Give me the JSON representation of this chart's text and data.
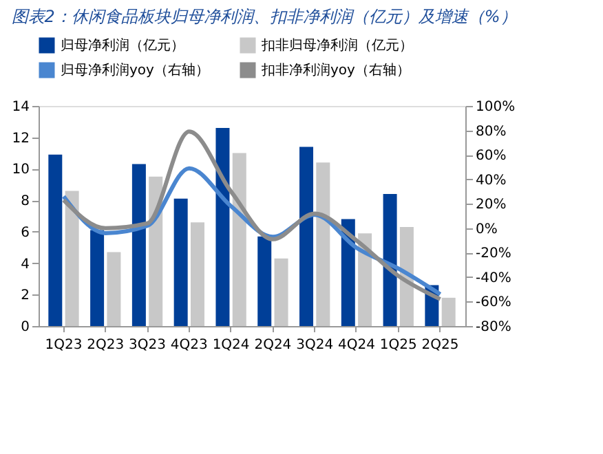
{
  "chart_data": {
    "type": "bar",
    "title": "图表2：休闲食品板块归母净利润、扣非净利润（亿元）及增速（%）",
    "categories": [
      "1Q23",
      "2Q23",
      "3Q23",
      "4Q23",
      "1Q24",
      "2Q24",
      "3Q24",
      "4Q24",
      "1Q25",
      "2Q25"
    ],
    "series": [
      {
        "name": "归母净利润（亿元）",
        "color": "#003f98",
        "values": [
          10.9,
          6.1,
          10.3,
          8.1,
          12.6,
          5.7,
          11.4,
          6.8,
          8.4,
          2.6
        ]
      },
      {
        "name": "扣非归母净利润（亿元）",
        "color": "#c8c8c8",
        "values": [
          8.6,
          4.7,
          9.5,
          6.6,
          11.0,
          4.3,
          10.4,
          5.9,
          6.3,
          1.8
        ]
      },
      {
        "name": "归母净利润yoy（右轴）",
        "type": "line",
        "axis": "y2",
        "color": "#4a86d0",
        "values": [
          26,
          -4,
          2,
          49,
          18,
          -7,
          11,
          -16,
          -33,
          -54
        ]
      },
      {
        "name": "扣非净利润yoy（右轴）",
        "type": "line",
        "axis": "y2",
        "color": "#8c8c8c",
        "values": [
          23,
          0,
          4,
          79,
          30,
          -9,
          12,
          -10,
          -39,
          -58
        ]
      }
    ],
    "ylim": [
      0,
      14
    ],
    "yticks": [
      0,
      2,
      4,
      6,
      8,
      10,
      12,
      14
    ],
    "y2lim": [
      -80,
      100
    ],
    "y2ticks": [
      {
        "value": -80,
        "label": "-80%"
      },
      {
        "value": -60,
        "label": "-60%"
      },
      {
        "value": -40,
        "label": "-40%"
      },
      {
        "value": -20,
        "label": "-20%"
      },
      {
        "value": 0,
        "label": "0%"
      },
      {
        "value": 20,
        "label": "20%"
      },
      {
        "value": 40,
        "label": "40%"
      },
      {
        "value": 60,
        "label": "60%"
      },
      {
        "value": 80,
        "label": "80%"
      },
      {
        "value": 100,
        "label": "100%"
      }
    ],
    "grid": false,
    "legend": "top"
  }
}
